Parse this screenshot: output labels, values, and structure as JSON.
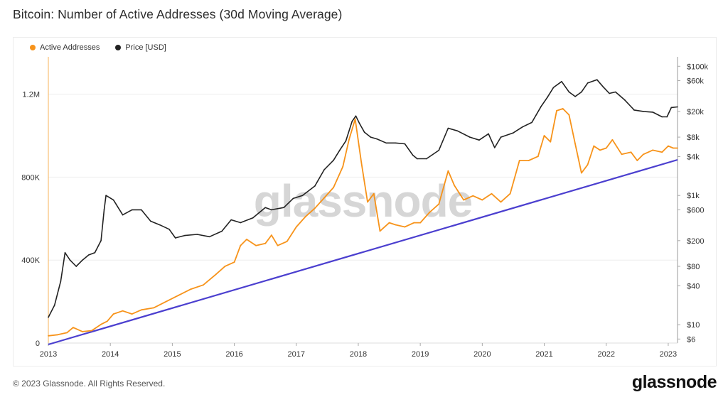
{
  "title": "Bitcoin: Number of Active Addresses (30d Moving Average)",
  "footer": {
    "copyright": "© 2023 Glassnode. All Rights Reserved.",
    "brand": "glassnode"
  },
  "watermark": "glassnode",
  "colors": {
    "active": "#f7931a",
    "price": "#222222",
    "trend": "#4b3fcf",
    "grid": "#eeeeee"
  },
  "chart_data": {
    "type": "line",
    "title": "Bitcoin: Number of Active Addresses (30d Moving Average)",
    "grid": true,
    "legend_position": "top-left",
    "x_ticks": [
      "2013",
      "2014",
      "2015",
      "2016",
      "2017",
      "2018",
      "2019",
      "2020",
      "2021",
      "2022",
      "2023"
    ],
    "x_range": [
      2013.0,
      2023.15
    ],
    "y_left": {
      "range": [
        0,
        1380000
      ],
      "ticks": [
        {
          "v": 0,
          "label": "0"
        },
        {
          "v": 400000,
          "label": "400K"
        },
        {
          "v": 800000,
          "label": "800K"
        },
        {
          "v": 1200000,
          "label": "1.2M"
        }
      ]
    },
    "y_right": {
      "scale": "log",
      "range": [
        5.2,
        140000
      ],
      "ticks": [
        {
          "v": 6,
          "label": "$6"
        },
        {
          "v": 10,
          "label": "$10"
        },
        {
          "v": 40,
          "label": "$40"
        },
        {
          "v": 80,
          "label": "$80"
        },
        {
          "v": 200,
          "label": "$200"
        },
        {
          "v": 600,
          "label": "$600"
        },
        {
          "v": 1000,
          "label": "$1k"
        },
        {
          "v": 4000,
          "label": "$4k"
        },
        {
          "v": 8000,
          "label": "$8k"
        },
        {
          "v": 20000,
          "label": "$20k"
        },
        {
          "v": 60000,
          "label": "$60k"
        },
        {
          "v": 100000,
          "label": "$100k"
        }
      ]
    },
    "series": [
      {
        "name": "Active Addresses",
        "axis": "left",
        "color": "#f7931a",
        "x": [
          2013.0,
          2013.15,
          2013.3,
          2013.4,
          2013.55,
          2013.7,
          2013.85,
          2013.95,
          2014.05,
          2014.2,
          2014.35,
          2014.5,
          2014.7,
          2014.9,
          2015.1,
          2015.3,
          2015.5,
          2015.7,
          2015.85,
          2016.0,
          2016.1,
          2016.2,
          2016.35,
          2016.5,
          2016.6,
          2016.7,
          2016.85,
          2017.0,
          2017.15,
          2017.3,
          2017.45,
          2017.6,
          2017.75,
          2017.85,
          2017.95,
          2018.05,
          2018.15,
          2018.25,
          2018.35,
          2018.5,
          2018.6,
          2018.75,
          2018.9,
          2019.0,
          2019.15,
          2019.3,
          2019.45,
          2019.55,
          2019.7,
          2019.85,
          2020.0,
          2020.15,
          2020.3,
          2020.45,
          2020.6,
          2020.75,
          2020.9,
          2021.0,
          2021.1,
          2021.2,
          2021.3,
          2021.4,
          2021.5,
          2021.6,
          2021.7,
          2021.8,
          2021.9,
          2022.0,
          2022.1,
          2022.25,
          2022.4,
          2022.5,
          2022.6,
          2022.75,
          2022.9,
          2023.0,
          2023.08,
          2023.15
        ],
        "values": [
          35000,
          40000,
          50000,
          75000,
          55000,
          60000,
          90000,
          105000,
          140000,
          155000,
          140000,
          160000,
          170000,
          200000,
          230000,
          260000,
          280000,
          330000,
          370000,
          390000,
          470000,
          500000,
          470000,
          480000,
          520000,
          470000,
          490000,
          560000,
          610000,
          650000,
          700000,
          750000,
          850000,
          980000,
          1080000,
          870000,
          680000,
          720000,
          540000,
          580000,
          570000,
          560000,
          580000,
          580000,
          630000,
          670000,
          830000,
          760000,
          690000,
          710000,
          690000,
          720000,
          680000,
          720000,
          880000,
          880000,
          900000,
          1000000,
          970000,
          1120000,
          1130000,
          1100000,
          960000,
          820000,
          860000,
          950000,
          930000,
          940000,
          980000,
          910000,
          920000,
          880000,
          910000,
          930000,
          920000,
          950000,
          940000,
          940000
        ]
      },
      {
        "name": "Price [USD]",
        "axis": "right",
        "color": "#222222",
        "x": [
          2013.0,
          2013.1,
          2013.2,
          2013.27,
          2013.35,
          2013.45,
          2013.55,
          2013.65,
          2013.75,
          2013.85,
          2013.9,
          2013.93,
          2014.05,
          2014.2,
          2014.35,
          2014.5,
          2014.65,
          2014.8,
          2014.95,
          2015.05,
          2015.2,
          2015.4,
          2015.6,
          2015.8,
          2015.95,
          2016.1,
          2016.3,
          2016.5,
          2016.6,
          2016.8,
          2016.95,
          2017.1,
          2017.3,
          2017.45,
          2017.6,
          2017.7,
          2017.8,
          2017.9,
          2017.96,
          2018.02,
          2018.1,
          2018.2,
          2018.3,
          2018.45,
          2018.6,
          2018.75,
          2018.88,
          2018.95,
          2019.1,
          2019.3,
          2019.45,
          2019.6,
          2019.8,
          2019.95,
          2020.1,
          2020.2,
          2020.3,
          2020.5,
          2020.65,
          2020.8,
          2020.95,
          2021.05,
          2021.15,
          2021.28,
          2021.4,
          2021.5,
          2021.6,
          2021.7,
          2021.85,
          2021.95,
          2022.05,
          2022.15,
          2022.3,
          2022.45,
          2022.6,
          2022.75,
          2022.9,
          2022.98,
          2023.05,
          2023.15
        ],
        "values": [
          13,
          20,
          47,
          130,
          100,
          80,
          100,
          120,
          130,
          200,
          600,
          1000,
          850,
          500,
          600,
          600,
          400,
          350,
          300,
          220,
          240,
          250,
          230,
          280,
          420,
          380,
          450,
          650,
          600,
          650,
          900,
          1000,
          1400,
          2500,
          3500,
          5000,
          7000,
          14000,
          17000,
          13000,
          9500,
          8000,
          7500,
          6500,
          6500,
          6300,
          4200,
          3700,
          3700,
          5000,
          11000,
          10000,
          8000,
          7200,
          9000,
          5500,
          8000,
          9300,
          11500,
          13500,
          24000,
          33000,
          47000,
          58000,
          40000,
          34000,
          40000,
          55000,
          62000,
          48000,
          38000,
          40000,
          30000,
          21000,
          20000,
          19500,
          16500,
          16500,
          23000,
          23500
        ]
      }
    ]
  }
}
